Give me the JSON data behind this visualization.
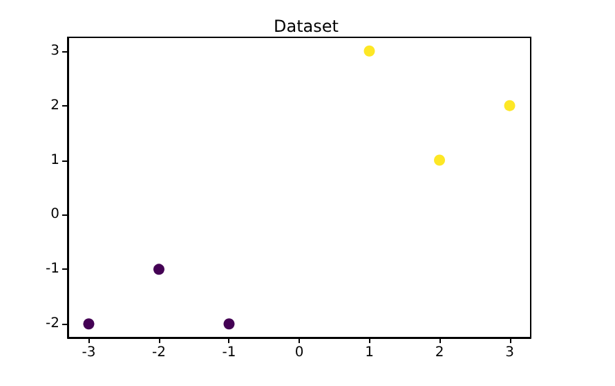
{
  "chart_data": {
    "type": "scatter",
    "title": "Dataset",
    "x": [
      -3,
      -2,
      -1,
      1,
      2,
      3
    ],
    "values": [
      -2,
      -1,
      -2,
      3,
      1,
      2
    ],
    "colors": [
      "#440154",
      "#440154",
      "#440154",
      "#fde725",
      "#fde725",
      "#fde725"
    ],
    "xlim": [
      -3.3,
      3.3
    ],
    "xticks": [
      -3,
      -2,
      -1,
      0,
      1,
      2,
      3
    ],
    "ylim": [
      -2.25,
      3.25
    ],
    "yticks": [
      -2,
      -1,
      0,
      1,
      2,
      3
    ],
    "marker": "circle",
    "grid": false
  }
}
